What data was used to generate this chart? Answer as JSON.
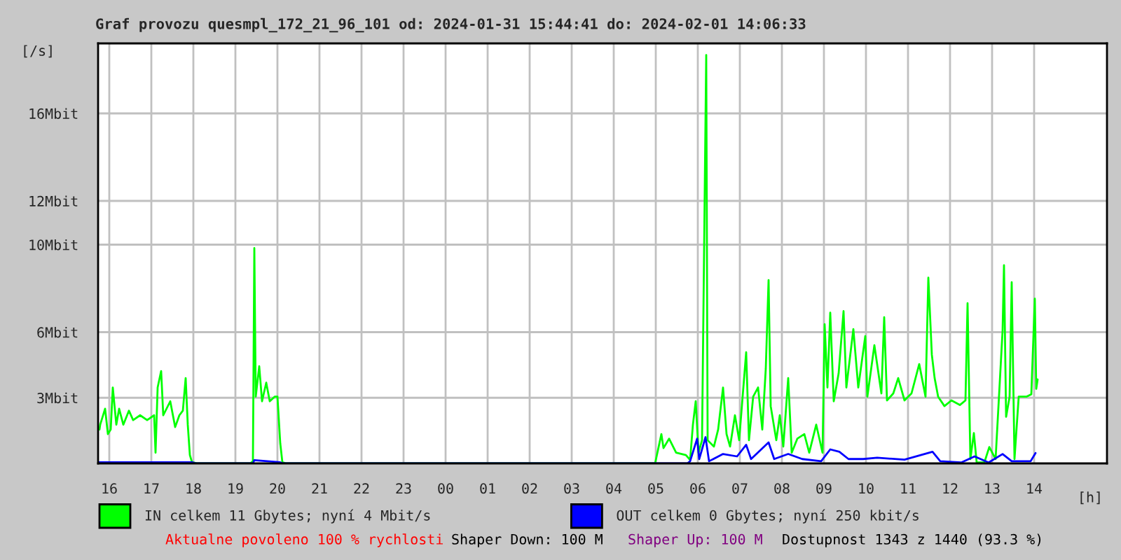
{
  "chart_data": {
    "type": "line",
    "title": "Graf provozu quesmpl_172_21_96_101 od: 2024-01-31 15:44:41 do: 2024-02-01 14:06:33",
    "xlabel": "[h]",
    "ylabel": "[/s]",
    "xlim": [
      "2024-01-31T15:44",
      "2024-02-01T15:44"
    ],
    "xticks": [
      {
        "value": "2024-01-31T16:00",
        "label": "16"
      },
      {
        "value": "2024-01-31T17:00",
        "label": "17"
      },
      {
        "value": "2024-01-31T18:00",
        "label": "18"
      },
      {
        "value": "2024-01-31T19:00",
        "label": "19"
      },
      {
        "value": "2024-01-31T20:00",
        "label": "20"
      },
      {
        "value": "2024-01-31T21:00",
        "label": "21"
      },
      {
        "value": "2024-01-31T22:00",
        "label": "22"
      },
      {
        "value": "2024-01-31T23:00",
        "label": "23"
      },
      {
        "value": "2024-02-01T00:00",
        "label": "00"
      },
      {
        "value": "2024-02-01T01:00",
        "label": "01"
      },
      {
        "value": "2024-02-01T02:00",
        "label": "02"
      },
      {
        "value": "2024-02-01T03:00",
        "label": "03"
      },
      {
        "value": "2024-02-01T04:00",
        "label": "04"
      },
      {
        "value": "2024-02-01T05:00",
        "label": "05"
      },
      {
        "value": "2024-02-01T06:00",
        "label": "06"
      },
      {
        "value": "2024-02-01T07:00",
        "label": "07"
      },
      {
        "value": "2024-02-01T08:00",
        "label": "08"
      },
      {
        "value": "2024-02-01T09:00",
        "label": "09"
      },
      {
        "value": "2024-02-01T10:00",
        "label": "10"
      },
      {
        "value": "2024-02-01T11:00",
        "label": "11"
      },
      {
        "value": "2024-02-01T12:00",
        "label": "12"
      },
      {
        "value": "2024-02-01T13:00",
        "label": "13"
      },
      {
        "value": "2024-02-01T14:00",
        "label": "14"
      }
    ],
    "ylim": [
      0,
      19.2
    ],
    "yticks": [
      {
        "value": 3,
        "label": "3Mbit"
      },
      {
        "value": 6,
        "label": "6Mbit"
      },
      {
        "value": 10,
        "label": "10Mbit"
      },
      {
        "value": 12,
        "label": "12Mbit"
      },
      {
        "value": 16,
        "label": "16Mbit"
      }
    ],
    "grid": true,
    "legend": "bottom",
    "series": [
      {
        "name": "IN celkem 11 Gbytes; nyní 4 Mbit/s",
        "color": "#00ff00",
        "x": [
          "2024-01-31T15:46",
          "2024-01-31T15:47",
          "2024-01-31T15:54",
          "2024-01-31T15:58",
          "2024-01-31T16:02",
          "2024-01-31T16:05",
          "2024-01-31T16:10",
          "2024-01-31T16:14",
          "2024-01-31T16:20",
          "2024-01-31T16:28",
          "2024-01-31T16:34",
          "2024-01-31T16:44",
          "2024-01-31T16:54",
          "2024-01-31T17:04",
          "2024-01-31T17:06",
          "2024-01-31T17:09",
          "2024-01-31T17:14",
          "2024-01-31T17:17",
          "2024-01-31T17:27",
          "2024-01-31T17:34",
          "2024-01-31T17:40",
          "2024-01-31T17:45",
          "2024-01-31T17:49",
          "2024-01-31T17:52",
          "2024-01-31T17:55",
          "2024-01-31T17:58",
          "2024-01-31T18:06",
          "2024-01-31T19:21",
          "2024-01-31T19:25",
          "2024-01-31T19:27",
          "2024-01-31T19:29",
          "2024-01-31T19:34",
          "2024-01-31T19:38",
          "2024-01-31T19:44",
          "2024-01-31T19:49",
          "2024-01-31T19:56",
          "2024-01-31T20:00",
          "2024-01-31T20:04",
          "2024-01-31T20:07",
          "2024-01-31T20:12",
          "2024-02-01T04:54",
          "2024-02-01T04:59",
          "2024-02-01T05:08",
          "2024-02-01T05:11",
          "2024-02-01T05:19",
          "2024-02-01T05:29",
          "2024-02-01T05:43",
          "2024-02-01T05:49",
          "2024-02-01T05:53",
          "2024-02-01T05:57",
          "2024-02-01T06:01",
          "2024-02-01T06:06",
          "2024-02-01T06:12",
          "2024-02-01T06:14",
          "2024-02-01T06:23",
          "2024-02-01T06:29",
          "2024-02-01T06:36",
          "2024-02-01T06:41",
          "2024-02-01T06:46",
          "2024-02-01T06:53",
          "2024-02-01T06:59",
          "2024-02-01T07:09",
          "2024-02-01T07:13",
          "2024-02-01T07:19",
          "2024-02-01T07:26",
          "2024-02-01T07:32",
          "2024-02-01T07:37",
          "2024-02-01T07:41",
          "2024-02-01T07:44",
          "2024-02-01T07:52",
          "2024-02-01T07:57",
          "2024-02-01T08:02",
          "2024-02-01T08:09",
          "2024-02-01T08:14",
          "2024-02-01T08:22",
          "2024-02-01T08:32",
          "2024-02-01T08:39",
          "2024-02-01T08:49",
          "2024-02-01T08:58",
          "2024-02-01T09:01",
          "2024-02-01T09:05",
          "2024-02-01T09:09",
          "2024-02-01T09:14",
          "2024-02-01T09:21",
          "2024-02-01T09:28",
          "2024-02-01T09:32",
          "2024-02-01T09:42",
          "2024-02-01T09:49",
          "2024-02-01T09:59",
          "2024-02-01T10:02",
          "2024-02-01T10:12",
          "2024-02-01T10:22",
          "2024-02-01T10:26",
          "2024-02-01T10:30",
          "2024-02-01T10:39",
          "2024-02-01T10:46",
          "2024-02-01T10:55",
          "2024-02-01T11:05",
          "2024-02-01T11:16",
          "2024-02-01T11:25",
          "2024-02-01T11:29",
          "2024-02-01T11:34",
          "2024-02-01T11:38",
          "2024-02-01T11:43",
          "2024-02-01T11:52",
          "2024-02-01T12:02",
          "2024-02-01T12:14",
          "2024-02-01T12:22",
          "2024-02-01T12:25",
          "2024-02-01T12:29",
          "2024-02-01T12:34",
          "2024-02-01T12:38",
          "2024-02-01T12:49",
          "2024-02-01T12:56",
          "2024-02-01T13:05",
          "2024-02-01T13:15",
          "2024-02-01T13:17",
          "2024-02-01T13:20",
          "2024-02-01T13:25",
          "2024-02-01T13:28",
          "2024-02-01T13:32",
          "2024-02-01T13:38",
          "2024-02-01T13:49",
          "2024-02-01T13:56",
          "2024-02-01T14:01",
          "2024-02-01T14:03",
          "2024-02-01T14:05"
        ],
        "values": [
          1.55,
          1.77,
          2.5,
          1.34,
          1.55,
          3.47,
          1.77,
          2.5,
          1.77,
          2.41,
          1.98,
          2.2,
          1.98,
          2.2,
          0.49,
          3.47,
          4.22,
          2.2,
          2.84,
          1.66,
          2.2,
          2.41,
          3.9,
          1.77,
          0.38,
          0.06,
          0,
          0,
          0.1,
          9.84,
          3.05,
          4.44,
          2.84,
          3.69,
          2.84,
          3.05,
          3.05,
          0.92,
          0.06,
          0,
          0,
          0,
          1.34,
          0.7,
          1.13,
          0.49,
          0.38,
          0.16,
          1.77,
          2.84,
          0.49,
          1.06,
          18.67,
          1.06,
          0.77,
          1.55,
          3.47,
          1.34,
          0.77,
          2.2,
          1.06,
          5.08,
          1.06,
          3.05,
          3.47,
          1.55,
          4.33,
          8.38,
          2.62,
          1.06,
          2.2,
          0.77,
          3.9,
          0.49,
          1.13,
          1.34,
          0.49,
          1.77,
          0.49,
          6.36,
          3.47,
          6.89,
          2.84,
          4.12,
          6.96,
          3.47,
          6.14,
          3.47,
          5.82,
          3.05,
          5.4,
          3.2,
          6.68,
          2.88,
          3.2,
          3.9,
          2.88,
          3.2,
          4.54,
          3.05,
          8.49,
          4.97,
          3.9,
          3.05,
          2.62,
          2.88,
          2.67,
          2.88,
          7.32,
          0.2,
          1.39,
          0.04,
          0.04,
          0.75,
          0.2,
          6.08,
          9.06,
          2.13,
          3.05,
          8.28,
          0.2,
          3.05,
          3.05,
          3.16,
          7.53,
          3.41,
          3.84
        ]
      },
      {
        "name": "OUT celkem 0 Gbytes; nyní 250 kbit/s",
        "color": "#0000ff",
        "x": [
          "2024-01-31T15:44",
          "2024-01-31T17:58",
          "2024-01-31T18:04",
          "2024-01-31T19:25",
          "2024-01-31T19:27",
          "2024-01-31T20:04",
          "2024-01-31T20:08",
          "2024-02-01T05:45",
          "2024-02-01T05:49",
          "2024-02-01T05:59",
          "2024-02-01T06:02",
          "2024-02-01T06:11",
          "2024-02-01T06:16",
          "2024-02-01T06:36",
          "2024-02-01T06:56",
          "2024-02-01T07:09",
          "2024-02-01T07:16",
          "2024-02-01T07:41",
          "2024-02-01T07:49",
          "2024-02-01T08:09",
          "2024-02-01T08:29",
          "2024-02-01T08:56",
          "2024-02-01T09:09",
          "2024-02-01T09:22",
          "2024-02-01T09:35",
          "2024-02-01T09:56",
          "2024-02-01T10:16",
          "2024-02-01T10:55",
          "2024-02-01T11:35",
          "2024-02-01T11:46",
          "2024-02-01T12:16",
          "2024-02-01T12:35",
          "2024-02-01T12:55",
          "2024-02-01T13:15",
          "2024-02-01T13:28",
          "2024-02-01T13:55",
          "2024-02-01T14:02"
        ],
        "values": [
          0.05,
          0.05,
          0,
          0,
          0.15,
          0.05,
          0,
          0,
          0.1,
          1.13,
          0.2,
          1.2,
          0.1,
          0.43,
          0.32,
          0.85,
          0.2,
          0.96,
          0.2,
          0.43,
          0.2,
          0.1,
          0.64,
          0.53,
          0.2,
          0.2,
          0.26,
          0.17,
          0.53,
          0.1,
          0.04,
          0.32,
          0.04,
          0.43,
          0.1,
          0.1,
          0.47
        ]
      }
    ],
    "annotations": [
      "Aktualne povoleno 100 % rychlosti",
      "Shaper Down: 100 M",
      "Shaper Up: 100 M",
      "Dostupnost 1343 z 1440 (93.3 %)"
    ]
  }
}
